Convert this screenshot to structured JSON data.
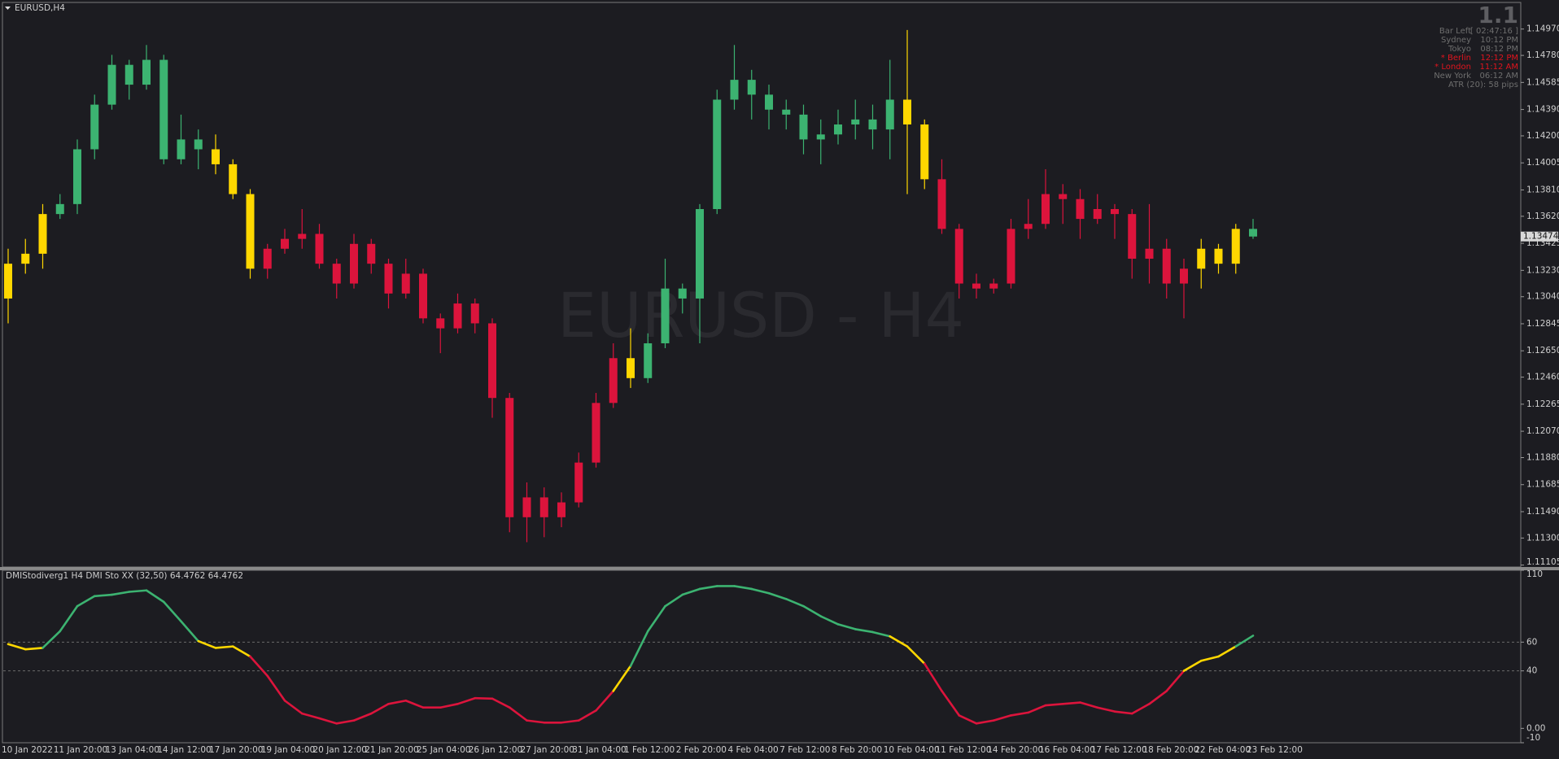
{
  "info_panel": {
    "counter": "1.1",
    "rows": [
      {
        "label": "Bar Left",
        "value": "[ 02:47:16 ]",
        "color": "#6e6e6e"
      },
      {
        "label": "Sydney",
        "value": "10:12 PM",
        "color": "#6e6e6e"
      },
      {
        "label": "Tokyo",
        "value": "08:12 PM",
        "color": "#6e6e6e"
      },
      {
        "label": "* Berlin",
        "value": "12:12 PM",
        "color": "#e0141e"
      },
      {
        "label": "* London",
        "value": "11:12 AM",
        "color": "#e0141e"
      },
      {
        "label": "New York",
        "value": "06:12 AM",
        "color": "#6e6e6e"
      },
      {
        "label": "ATR (20): 58 pips",
        "color": "#6e6e6e"
      }
    ]
  },
  "chart_data": [
    {
      "type": "candlestick",
      "title": "EURUSD,H4",
      "watermark": "EURUSD - H4",
      "open": [
        1.13027,
        1.13278,
        1.1335,
        1.13636,
        1.13708,
        1.14103,
        1.14425,
        1.14712,
        1.14569,
        1.14748,
        1.14031,
        1.14174,
        1.14103,
        1.13995,
        1.1378,
        1.13242,
        1.13386,
        1.13457,
        1.13493,
        1.13278,
        1.13135,
        1.13421,
        1.13278,
        1.13063,
        1.13206,
        1.12884,
        1.12812,
        1.12991,
        1.12848,
        1.1231,
        1.1145,
        1.11593,
        1.1145,
        1.11557,
        1.11844,
        1.12274,
        1.12597,
        1.12453,
        1.12704,
        1.13099,
        1.13027,
        1.13672,
        1.14461,
        1.14604,
        1.14497,
        1.14389,
        1.14353,
        1.14174,
        1.1421,
        1.14282,
        1.14318,
        1.14246,
        1.14461,
        1.14282,
        1.13887,
        1.13529,
        1.13135,
        1.13099,
        1.13135,
        1.13529,
        1.13565,
        1.1378,
        1.13744,
        1.13601,
        1.13672,
        1.13636,
        1.13314,
        1.13386,
        1.13135,
        1.13242,
        1.13386,
        1.13278,
        1.13529
      ],
      "high": [
        1.13386,
        1.13457,
        1.13708,
        1.1378,
        1.14174,
        1.14497,
        1.14784,
        1.14748,
        1.14855,
        1.14784,
        1.14353,
        1.14246,
        1.1421,
        1.14031,
        1.13816,
        1.13421,
        1.13529,
        1.13672,
        1.13565,
        1.13314,
        1.13493,
        1.13457,
        1.13314,
        1.13314,
        1.13242,
        1.12919,
        1.13063,
        1.13027,
        1.12884,
        1.12346,
        1.11701,
        1.11665,
        1.11629,
        1.11916,
        1.12346,
        1.12704,
        1.12812,
        1.12776,
        1.13314,
        1.13135,
        1.13708,
        1.14533,
        1.14855,
        1.14676,
        1.14569,
        1.14461,
        1.14425,
        1.14318,
        1.14389,
        1.14461,
        1.14425,
        1.14748,
        1.14963,
        1.14318,
        1.14031,
        1.13565,
        1.13206,
        1.1317,
        1.13601,
        1.13744,
        1.13959,
        1.13852,
        1.13816,
        1.1378,
        1.13708,
        1.13672,
        1.13708,
        1.13457,
        1.13314,
        1.13457,
        1.13421,
        1.13565,
        1.13601
      ],
      "low": [
        1.12848,
        1.13206,
        1.13242,
        1.13601,
        1.13636,
        1.14031,
        1.14389,
        1.14461,
        1.14533,
        1.13995,
        1.13995,
        1.13959,
        1.13923,
        1.13744,
        1.1317,
        1.1317,
        1.1335,
        1.13386,
        1.13242,
        1.13027,
        1.13099,
        1.13206,
        1.12955,
        1.13027,
        1.12848,
        1.12633,
        1.12776,
        1.12776,
        1.12167,
        1.11342,
        1.1127,
        1.11306,
        1.11378,
        1.11521,
        1.11808,
        1.12238,
        1.12382,
        1.12418,
        1.12669,
        1.12919,
        1.12704,
        1.13636,
        1.14389,
        1.14318,
        1.14246,
        1.14246,
        1.14067,
        1.13995,
        1.14138,
        1.14174,
        1.14103,
        1.14031,
        1.1378,
        1.13816,
        1.13493,
        1.13027,
        1.13027,
        1.13063,
        1.13099,
        1.13457,
        1.13529,
        1.13565,
        1.13457,
        1.13565,
        1.13457,
        1.1317,
        1.13135,
        1.13027,
        1.12884,
        1.13099,
        1.13206,
        1.13206,
        1.13457
      ],
      "close": [
        1.13278,
        1.1335,
        1.13636,
        1.13708,
        1.14103,
        1.14425,
        1.14712,
        1.14569,
        1.14748,
        1.14031,
        1.14174,
        1.14103,
        1.13995,
        1.1378,
        1.13242,
        1.13386,
        1.13457,
        1.13493,
        1.13278,
        1.13135,
        1.13421,
        1.13278,
        1.13063,
        1.13206,
        1.12884,
        1.12812,
        1.12991,
        1.12848,
        1.1231,
        1.1145,
        1.11593,
        1.1145,
        1.11557,
        1.11844,
        1.12274,
        1.12597,
        1.12453,
        1.12704,
        1.13099,
        1.13027,
        1.13672,
        1.14461,
        1.14604,
        1.14497,
        1.14389,
        1.14353,
        1.14174,
        1.1421,
        1.14282,
        1.14318,
        1.14246,
        1.14461,
        1.14282,
        1.13887,
        1.13529,
        1.13135,
        1.13099,
        1.13135,
        1.13529,
        1.13565,
        1.1378,
        1.13744,
        1.13601,
        1.13672,
        1.13636,
        1.13314,
        1.13386,
        1.13135,
        1.13242,
        1.13386,
        1.13278,
        1.13529,
        1.13474
      ],
      "ylim": [
        1.11091,
        1.15156
      ],
      "yticks": [
        {
          "value": 1.1497,
          "label": "1.14970"
        },
        {
          "value": 1.1478,
          "label": "1.14780"
        },
        1.14585,
        {
          "value": 1.1439,
          "label": "1.14390"
        },
        {
          "value": 1.142,
          "label": "1.14200"
        },
        1.14005,
        {
          "value": 1.1381,
          "label": "1.13810"
        },
        {
          "value": 1.1362,
          "label": "1.13620"
        },
        1.13425,
        {
          "value": 1.1323,
          "label": "1.13230"
        },
        {
          "value": 1.1304,
          "label": "1.13040"
        },
        1.12845,
        {
          "value": 1.1265,
          "label": "1.12650"
        },
        {
          "value": 1.1246,
          "label": "1.12460"
        },
        1.12265,
        {
          "value": 1.1207,
          "label": "1.12070"
        },
        {
          "value": 1.1188,
          "label": "1.11880"
        },
        1.11685,
        {
          "value": 1.1149,
          "label": "1.11490"
        },
        {
          "value": 1.113,
          "label": "1.11300"
        },
        1.11105
      ]
    },
    {
      "type": "line",
      "title": "DMIStodiverg1 H4 DMI Sto XX (32,50) 64.4762 64.4762",
      "categories": [
        "10 Jan 2022",
        null,
        null,
        "11 Jan 20:00",
        null,
        null,
        "13 Jan 04:00",
        null,
        null,
        "14 Jan 12:00",
        null,
        null,
        "17 Jan 20:00",
        null,
        null,
        "19 Jan 04:00",
        null,
        null,
        "20 Jan 12:00",
        null,
        null,
        "21 Jan 20:00",
        null,
        null,
        "25 Jan 04:00",
        null,
        null,
        "26 Jan 12:00",
        null,
        null,
        "27 Jan 20:00",
        null,
        null,
        "31 Jan 04:00",
        null,
        null,
        "1 Feb 12:00",
        null,
        null,
        "2 Feb 20:00",
        null,
        null,
        "4 Feb 04:00",
        null,
        null,
        "7 Feb 12:00",
        null,
        null,
        "8 Feb 20:00",
        null,
        null,
        "10 Feb 04:00",
        null,
        null,
        "11 Feb 12:00",
        null,
        null,
        "14 Feb 20:00",
        null,
        null,
        "16 Feb 04:00",
        null,
        null,
        "17 Feb 12:00",
        null,
        null,
        "18 Feb 20:00",
        null,
        null,
        "22 Feb 04:00",
        null,
        null,
        "23 Feb 12:00"
      ],
      "values": [
        58.6,
        55,
        56,
        67.6,
        85,
        92,
        93,
        95,
        96,
        88,
        74.5,
        60.7,
        56,
        57,
        50,
        36.5,
        19.3,
        10.3,
        7,
        3.4,
        5.5,
        10.3,
        17,
        19.3,
        14.5,
        14.5,
        17,
        21,
        20.7,
        14.5,
        5.5,
        4,
        4,
        5.5,
        12.4,
        26,
        43.4,
        67.6,
        85,
        93,
        97,
        99,
        99,
        97,
        94,
        90,
        85,
        78,
        72.4,
        69,
        67,
        64,
        57,
        45,
        26,
        9,
        3.4,
        5.5,
        9,
        11,
        16,
        17,
        18,
        14.5,
        11.7,
        10.3,
        17,
        26,
        40,
        47,
        50,
        57,
        64.4762
      ],
      "ylim": [
        -10,
        110
      ],
      "yticks": [
        110,
        60,
        40,
        {
          "value": 0,
          "label": "0.00"
        },
        -10
      ],
      "levels": [
        60,
        40
      ],
      "colors": {
        "up": "#3cb371",
        "neutral": "#ffd700",
        "down": "#dc143c"
      }
    }
  ]
}
